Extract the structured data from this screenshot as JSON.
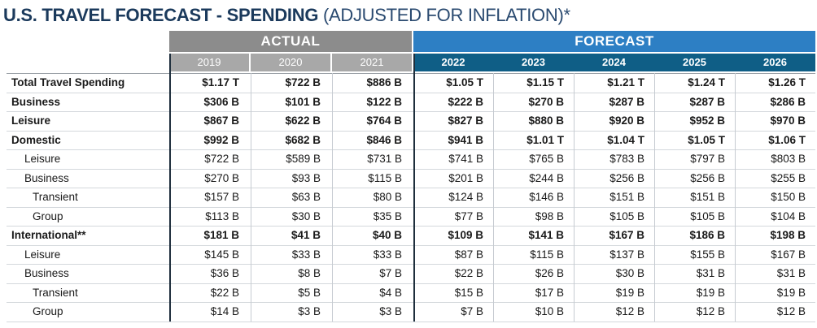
{
  "title": {
    "bold": "U.S. TRAVEL FORECAST - SPENDING",
    "light": "(ADJUSTED FOR INFLATION)*"
  },
  "groups": {
    "actual": "ACTUAL",
    "forecast": "FORECAST"
  },
  "colors": {
    "actual_group": "#8c8c8c",
    "actual_years": "#a8a8a8",
    "forecast_group": "#2d7fc4",
    "forecast_years": "#0f5e86",
    "title_text": "#1b3a5c"
  },
  "years_actual": [
    "2019",
    "2020",
    "2021"
  ],
  "years_forecast": [
    "2022",
    "2023",
    "2024",
    "2025",
    "2026"
  ],
  "rows": [
    {
      "label": "Total Travel Spending",
      "indent": 0,
      "bold": true,
      "values": [
        "$1.17 T",
        "$722 B",
        "$886 B",
        "$1.05 T",
        "$1.15 T",
        "$1.21 T",
        "$1.24 T",
        "$1.26 T"
      ]
    },
    {
      "label": "Business",
      "indent": 0,
      "bold": true,
      "values": [
        "$306 B",
        "$101 B",
        "$122 B",
        "$222 B",
        "$270 B",
        "$287 B",
        "$287 B",
        "$286 B"
      ]
    },
    {
      "label": "Leisure",
      "indent": 0,
      "bold": true,
      "values": [
        "$867 B",
        "$622 B",
        "$764 B",
        "$827 B",
        "$880 B",
        "$920 B",
        "$952 B",
        "$970 B"
      ]
    },
    {
      "label": "Domestic",
      "indent": 0,
      "bold": true,
      "values": [
        "$992 B",
        "$682 B",
        "$846 B",
        "$941 B",
        "$1.01 T",
        "$1.04 T",
        "$1.05 T",
        "$1.06 T"
      ]
    },
    {
      "label": "Leisure",
      "indent": 1,
      "bold": false,
      "values": [
        "$722 B",
        "$589 B",
        "$731 B",
        "$741 B",
        "$765 B",
        "$783 B",
        "$797 B",
        "$803 B"
      ]
    },
    {
      "label": "Business",
      "indent": 1,
      "bold": false,
      "values": [
        "$270 B",
        "$93 B",
        "$115 B",
        "$201 B",
        "$244 B",
        "$256 B",
        "$256 B",
        "$255 B"
      ]
    },
    {
      "label": "Transient",
      "indent": 2,
      "bold": false,
      "values": [
        "$157 B",
        "$63 B",
        "$80 B",
        "$124 B",
        "$146 B",
        "$151 B",
        "$151 B",
        "$150 B"
      ]
    },
    {
      "label": "Group",
      "indent": 2,
      "bold": false,
      "values": [
        "$113 B",
        "$30 B",
        "$35 B",
        "$77 B",
        "$98 B",
        "$105 B",
        "$105 B",
        "$104 B"
      ]
    },
    {
      "label": "International**",
      "indent": 0,
      "bold": true,
      "values": [
        "$181 B",
        "$41 B",
        "$40 B",
        "$109 B",
        "$141 B",
        "$167 B",
        "$186 B",
        "$198 B"
      ]
    },
    {
      "label": "Leisure",
      "indent": 1,
      "bold": false,
      "values": [
        "$145 B",
        "$33 B",
        "$33 B",
        "$87 B",
        "$115 B",
        "$137 B",
        "$155 B",
        "$167 B"
      ]
    },
    {
      "label": "Business",
      "indent": 1,
      "bold": false,
      "values": [
        "$36 B",
        "$8 B",
        "$7 B",
        "$22 B",
        "$26 B",
        "$30 B",
        "$31 B",
        "$31 B"
      ]
    },
    {
      "label": "Transient",
      "indent": 2,
      "bold": false,
      "values": [
        "$22 B",
        "$5 B",
        "$4 B",
        "$15 B",
        "$17 B",
        "$19 B",
        "$19 B",
        "$19 B"
      ]
    },
    {
      "label": "Group",
      "indent": 2,
      "bold": false,
      "values": [
        "$14 B",
        "$3 B",
        "$3 B",
        "$7 B",
        "$10 B",
        "$12 B",
        "$12 B",
        "$12 B"
      ]
    }
  ]
}
